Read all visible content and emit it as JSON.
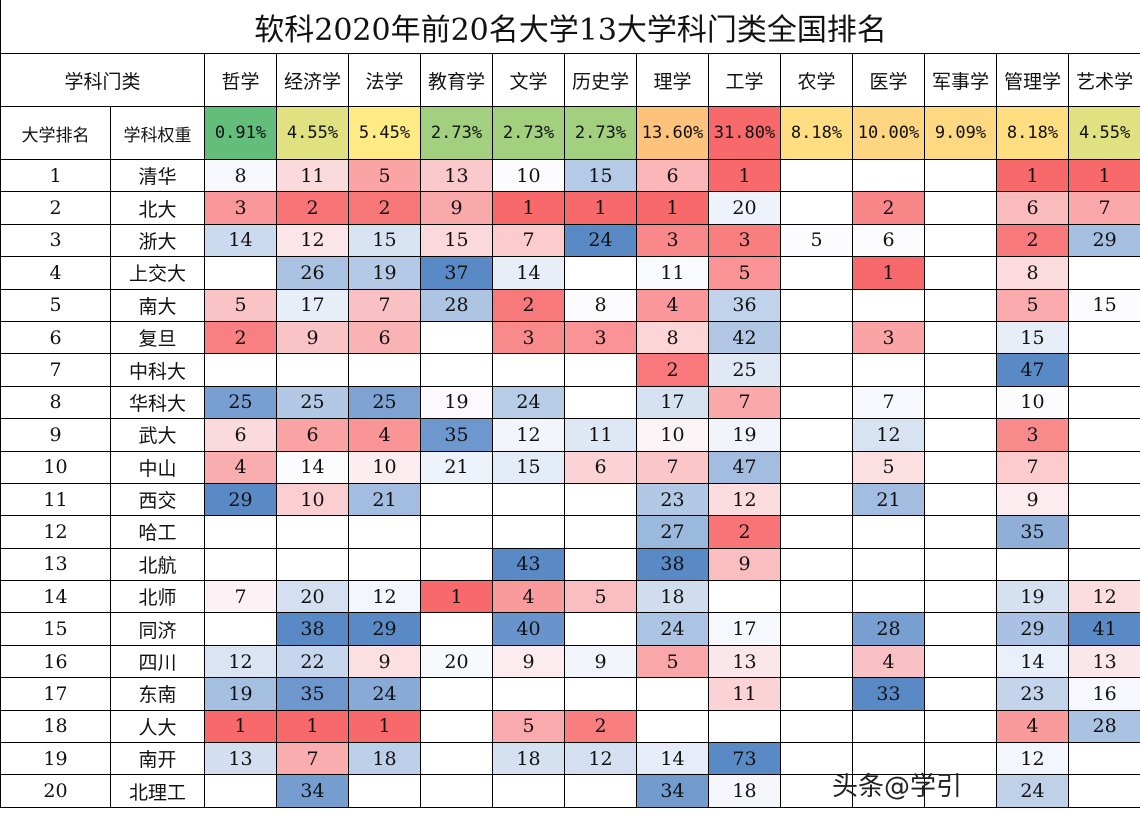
{
  "title": "软科2020年前20名大学13大学科门类全国排名",
  "header": {
    "category_label": "学科门类",
    "rank_label": "大学排名",
    "weight_label": "学科权重"
  },
  "subjects": [
    "哲学",
    "经济学",
    "法学",
    "教育学",
    "文学",
    "历史学",
    "理学",
    "工学",
    "农学",
    "医学",
    "军事学",
    "管理学",
    "艺术学"
  ],
  "weights": [
    "0.91%",
    "4.55%",
    "5.45%",
    "2.73%",
    "2.73%",
    "2.73%",
    "13.60%",
    "31.80%",
    "8.18%",
    "10.00%",
    "9.09%",
    "8.18%",
    "4.55%"
  ],
  "weight_values": [
    0.91,
    4.55,
    5.45,
    2.73,
    2.73,
    2.73,
    13.6,
    31.8,
    8.18,
    10.0,
    9.09,
    8.18,
    4.55
  ],
  "colors": {
    "low_rank": "#F8696B",
    "mid": "#FCFCFF",
    "high_rank": "#5A8AC6",
    "weight_low": "#63BE7B",
    "weight_mid": "#FFEB84",
    "weight_high": "#F8696B"
  },
  "rows": [
    {
      "rank": "1",
      "name": "清华",
      "values": [
        "8",
        "11",
        "5",
        "13",
        "10",
        "15",
        "6",
        "1",
        "",
        "",
        "",
        "1",
        "1"
      ]
    },
    {
      "rank": "2",
      "name": "北大",
      "values": [
        "3",
        "2",
        "2",
        "9",
        "1",
        "1",
        "1",
        "20",
        "",
        "2",
        "",
        "6",
        "7"
      ]
    },
    {
      "rank": "3",
      "name": "浙大",
      "values": [
        "14",
        "12",
        "15",
        "15",
        "7",
        "24",
        "3",
        "3",
        "5",
        "6",
        "",
        "2",
        "29"
      ]
    },
    {
      "rank": "4",
      "name": "上交大",
      "values": [
        "",
        "26",
        "19",
        "37",
        "14",
        "",
        "11",
        "5",
        "",
        "1",
        "",
        "8",
        ""
      ]
    },
    {
      "rank": "5",
      "name": "南大",
      "values": [
        "5",
        "17",
        "7",
        "28",
        "2",
        "8",
        "4",
        "36",
        "",
        "",
        "",
        "5",
        "15"
      ]
    },
    {
      "rank": "6",
      "name": "复旦",
      "values": [
        "2",
        "9",
        "6",
        "",
        "3",
        "3",
        "8",
        "42",
        "",
        "3",
        "",
        "15",
        ""
      ]
    },
    {
      "rank": "7",
      "name": "中科大",
      "values": [
        "",
        "",
        "",
        "",
        "",
        "",
        "2",
        "25",
        "",
        "",
        "",
        "47",
        ""
      ]
    },
    {
      "rank": "8",
      "name": "华科大",
      "values": [
        "25",
        "25",
        "25",
        "19",
        "24",
        "",
        "17",
        "7",
        "",
        "7",
        "",
        "10",
        ""
      ]
    },
    {
      "rank": "9",
      "name": "武大",
      "values": [
        "6",
        "6",
        "4",
        "35",
        "12",
        "11",
        "10",
        "19",
        "",
        "12",
        "",
        "3",
        ""
      ]
    },
    {
      "rank": "10",
      "name": "中山",
      "values": [
        "4",
        "14",
        "10",
        "21",
        "15",
        "6",
        "7",
        "47",
        "",
        "5",
        "",
        "7",
        ""
      ]
    },
    {
      "rank": "11",
      "name": "西交",
      "values": [
        "29",
        "10",
        "21",
        "",
        "",
        "",
        "23",
        "12",
        "",
        "21",
        "",
        "9",
        ""
      ]
    },
    {
      "rank": "12",
      "name": "哈工",
      "values": [
        "",
        "",
        "",
        "",
        "",
        "",
        "27",
        "2",
        "",
        "",
        "",
        "35",
        ""
      ]
    },
    {
      "rank": "13",
      "name": "北航",
      "values": [
        "",
        "",
        "",
        "",
        "43",
        "",
        "38",
        "9",
        "",
        "",
        "",
        "",
        ""
      ]
    },
    {
      "rank": "14",
      "name": "北师",
      "values": [
        "7",
        "20",
        "12",
        "1",
        "4",
        "5",
        "18",
        "",
        "",
        "",
        "",
        "19",
        "12"
      ]
    },
    {
      "rank": "15",
      "name": "同济",
      "values": [
        "",
        "38",
        "29",
        "",
        "40",
        "",
        "24",
        "17",
        "",
        "28",
        "",
        "29",
        "41"
      ]
    },
    {
      "rank": "16",
      "name": "四川",
      "values": [
        "12",
        "22",
        "9",
        "20",
        "9",
        "9",
        "5",
        "13",
        "",
        "4",
        "",
        "14",
        "13"
      ]
    },
    {
      "rank": "17",
      "name": "东南",
      "values": [
        "19",
        "35",
        "24",
        "",
        "",
        "",
        "",
        "11",
        "",
        "33",
        "",
        "23",
        "16"
      ]
    },
    {
      "rank": "18",
      "name": "人大",
      "values": [
        "1",
        "1",
        "1",
        "",
        "5",
        "2",
        "",
        "",
        "",
        "",
        "",
        "4",
        "28"
      ]
    },
    {
      "rank": "19",
      "name": "南开",
      "values": [
        "13",
        "7",
        "18",
        "",
        "18",
        "12",
        "14",
        "73",
        "",
        "",
        "",
        "12",
        ""
      ]
    },
    {
      "rank": "20",
      "name": "北理工",
      "values": [
        "",
        "34",
        "",
        "",
        "",
        "",
        "34",
        "18",
        "",
        "",
        "",
        "24",
        ""
      ]
    }
  ],
  "watermark": "头条@学引"
}
